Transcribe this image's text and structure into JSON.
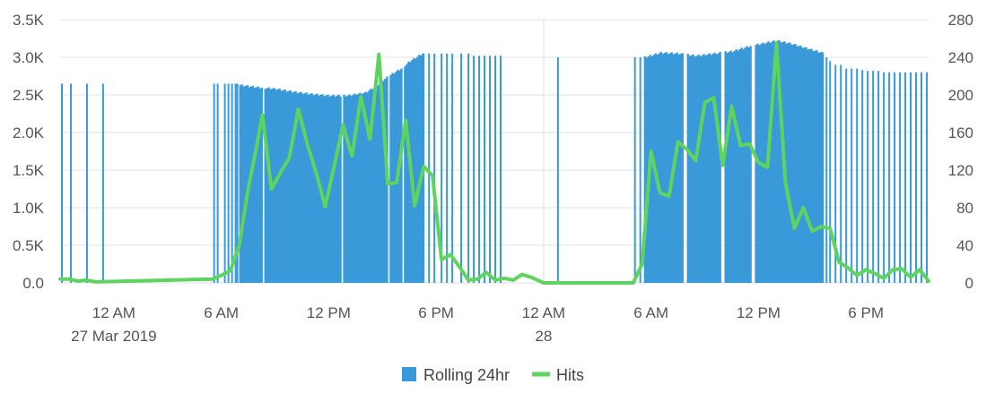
{
  "chart_data": {
    "type": "bar+line",
    "x_range_hours": [
      -3,
      45.5
    ],
    "x_ticks": [
      {
        "hour": 0,
        "label": "12 AM",
        "sublabel": "27 Mar 2019"
      },
      {
        "hour": 6,
        "label": "6 AM",
        "sublabel": ""
      },
      {
        "hour": 12,
        "label": "12 PM",
        "sublabel": ""
      },
      {
        "hour": 18,
        "label": "6 PM",
        "sublabel": ""
      },
      {
        "hour": 24,
        "label": "12 AM",
        "sublabel": "28"
      },
      {
        "hour": 30,
        "label": "6 AM",
        "sublabel": ""
      },
      {
        "hour": 36,
        "label": "12 PM",
        "sublabel": ""
      },
      {
        "hour": 42,
        "label": "6 PM",
        "sublabel": ""
      }
    ],
    "y_left": {
      "min": 0,
      "max": 3500,
      "ticks": [
        0,
        500,
        1000,
        1500,
        2000,
        2500,
        3000,
        3500
      ],
      "labels": [
        "0.0",
        "0.5K",
        "1.0K",
        "1.5K",
        "2.0K",
        "2.5K",
        "3.0K",
        "3.5K"
      ]
    },
    "y_right": {
      "min": 0,
      "max": 280,
      "ticks": [
        0,
        40,
        80,
        120,
        160,
        200,
        240,
        280
      ],
      "labels": [
        "0",
        "40",
        "80",
        "120",
        "160",
        "200",
        "240",
        "280"
      ]
    },
    "grid": true,
    "legend_position": "bottom",
    "colors": {
      "rolling": "#3a9ad9",
      "hits": "#5fd35f",
      "grid": "#e0e0e0"
    },
    "series": [
      {
        "name": "Rolling 24hr",
        "type": "bar",
        "axis": "left",
        "sparse_spikes": [
          {
            "x": -2.9,
            "y": 2650
          },
          {
            "x": -2.4,
            "y": 2650
          },
          {
            "x": -1.5,
            "y": 2650
          },
          {
            "x": -0.6,
            "y": 2650
          },
          {
            "x": 5.6,
            "y": 2650
          },
          {
            "x": 5.8,
            "y": 2650
          },
          {
            "x": 6.2,
            "y": 2650
          },
          {
            "x": 6.4,
            "y": 2650
          },
          {
            "x": 6.6,
            "y": 2650
          },
          {
            "x": 6.8,
            "y": 2650
          },
          {
            "x": 6.9,
            "y": 2650
          },
          {
            "x": 17.3,
            "y": 3050
          },
          {
            "x": 17.6,
            "y": 3050
          },
          {
            "x": 17.9,
            "y": 3050
          },
          {
            "x": 18.3,
            "y": 3050
          },
          {
            "x": 18.6,
            "y": 3050
          },
          {
            "x": 18.9,
            "y": 3050
          },
          {
            "x": 19.4,
            "y": 3050
          },
          {
            "x": 19.8,
            "y": 3050
          },
          {
            "x": 20.1,
            "y": 3020
          },
          {
            "x": 20.4,
            "y": 3020
          },
          {
            "x": 20.7,
            "y": 3020
          },
          {
            "x": 21.0,
            "y": 3020
          },
          {
            "x": 21.3,
            "y": 3020
          },
          {
            "x": 21.6,
            "y": 3020
          },
          {
            "x": 24.8,
            "y": 3000
          },
          {
            "x": 29.1,
            "y": 3000
          },
          {
            "x": 29.4,
            "y": 3000
          },
          {
            "x": 39.6,
            "y": 3050
          },
          {
            "x": 39.8,
            "y": 3000
          },
          {
            "x": 40.0,
            "y": 2950
          },
          {
            "x": 40.3,
            "y": 2900
          },
          {
            "x": 40.6,
            "y": 2900
          },
          {
            "x": 40.9,
            "y": 2850
          },
          {
            "x": 41.2,
            "y": 2850
          },
          {
            "x": 41.5,
            "y": 2850
          },
          {
            "x": 41.8,
            "y": 2830
          },
          {
            "x": 42.1,
            "y": 2820
          },
          {
            "x": 42.4,
            "y": 2820
          },
          {
            "x": 42.7,
            "y": 2820
          },
          {
            "x": 43.0,
            "y": 2800
          },
          {
            "x": 43.3,
            "y": 2800
          },
          {
            "x": 43.6,
            "y": 2800
          },
          {
            "x": 43.9,
            "y": 2800
          },
          {
            "x": 44.2,
            "y": 2800
          },
          {
            "x": 44.5,
            "y": 2800
          },
          {
            "x": 44.8,
            "y": 2800
          },
          {
            "x": 45.1,
            "y": 2800
          },
          {
            "x": 45.4,
            "y": 2800
          }
        ],
        "dense_regions": [
          {
            "x_start": 7.0,
            "x_end": 17.2,
            "step": 0.1,
            "profile": [
              [
                7.0,
                2630
              ],
              [
                8.0,
                2600
              ],
              [
                9.0,
                2580
              ],
              [
                10.0,
                2540
              ],
              [
                11.0,
                2510
              ],
              [
                12.0,
                2490
              ],
              [
                13.0,
                2490
              ],
              [
                14.0,
                2530
              ],
              [
                14.5,
                2600
              ],
              [
                15.0,
                2700
              ],
              [
                15.5,
                2780
              ],
              [
                16.0,
                2850
              ],
              [
                16.5,
                2950
              ],
              [
                17.2,
                3050
              ]
            ]
          },
          {
            "x_start": 29.6,
            "x_end": 39.5,
            "step": 0.1,
            "profile": [
              [
                29.6,
                3000
              ],
              [
                30.5,
                3060
              ],
              [
                31.5,
                3050
              ],
              [
                32.5,
                3020
              ],
              [
                33.5,
                3050
              ],
              [
                34.5,
                3080
              ],
              [
                35.5,
                3150
              ],
              [
                36.5,
                3200
              ],
              [
                37.0,
                3220
              ],
              [
                37.8,
                3180
              ],
              [
                38.5,
                3130
              ],
              [
                39.5,
                3060
              ]
            ]
          }
        ],
        "gaps": [
          [
            8.2,
            8.32
          ],
          [
            12.6,
            12.72
          ],
          [
            15.25,
            15.37
          ],
          [
            16.05,
            16.15
          ],
          [
            31.8,
            31.92
          ],
          [
            33.9,
            34.02
          ],
          [
            35.6,
            35.72
          ]
        ]
      },
      {
        "name": "Hits",
        "type": "line",
        "axis": "right",
        "points": [
          [
            -3.0,
            4
          ],
          [
            -2.5,
            4
          ],
          [
            -2.0,
            2
          ],
          [
            -1.5,
            3
          ],
          [
            -1.0,
            1
          ],
          [
            5.5,
            4
          ],
          [
            6.0,
            8
          ],
          [
            6.5,
            13
          ],
          [
            7.0,
            40
          ],
          [
            7.5,
            100
          ],
          [
            8.0,
            148
          ],
          [
            8.3,
            179
          ],
          [
            8.8,
            100
          ],
          [
            9.3,
            117
          ],
          [
            9.8,
            133
          ],
          [
            10.3,
            185
          ],
          [
            10.8,
            148
          ],
          [
            11.3,
            117
          ],
          [
            11.8,
            81
          ],
          [
            12.3,
            124
          ],
          [
            12.8,
            168
          ],
          [
            13.3,
            135
          ],
          [
            13.8,
            198
          ],
          [
            14.3,
            153
          ],
          [
            14.8,
            243
          ],
          [
            15.3,
            105
          ],
          [
            15.8,
            107
          ],
          [
            16.3,
            173
          ],
          [
            16.8,
            82
          ],
          [
            17.3,
            124
          ],
          [
            17.8,
            114
          ],
          [
            18.3,
            25
          ],
          [
            18.8,
            30
          ],
          [
            19.3,
            17
          ],
          [
            19.8,
            3
          ],
          [
            20.3,
            4
          ],
          [
            20.8,
            11
          ],
          [
            21.3,
            3
          ],
          [
            21.8,
            5
          ],
          [
            22.3,
            3
          ],
          [
            22.8,
            9
          ],
          [
            23.3,
            6
          ],
          [
            24.0,
            0
          ],
          [
            29.0,
            0
          ],
          [
            29.5,
            20
          ],
          [
            30.0,
            140
          ],
          [
            30.5,
            96
          ],
          [
            31.0,
            92
          ],
          [
            31.5,
            150
          ],
          [
            32.0,
            142
          ],
          [
            32.5,
            130
          ],
          [
            33.0,
            192
          ],
          [
            33.5,
            197
          ],
          [
            34.0,
            125
          ],
          [
            34.5,
            188
          ],
          [
            35.0,
            146
          ],
          [
            35.5,
            148
          ],
          [
            36.0,
            128
          ],
          [
            36.5,
            123
          ],
          [
            37.0,
            255
          ],
          [
            37.5,
            108
          ],
          [
            38.0,
            58
          ],
          [
            38.5,
            80
          ],
          [
            39.0,
            55
          ],
          [
            39.5,
            60
          ],
          [
            40.0,
            58
          ],
          [
            40.5,
            22
          ],
          [
            41.0,
            16
          ],
          [
            41.5,
            8
          ],
          [
            42.0,
            14
          ],
          [
            42.5,
            10
          ],
          [
            43.0,
            5
          ],
          [
            43.5,
            14
          ],
          [
            44.0,
            15
          ],
          [
            44.5,
            6
          ],
          [
            45.0,
            14
          ],
          [
            45.5,
            2
          ]
        ]
      }
    ]
  },
  "legend": {
    "rolling_label": "Rolling 24hr",
    "hits_label": "Hits"
  }
}
